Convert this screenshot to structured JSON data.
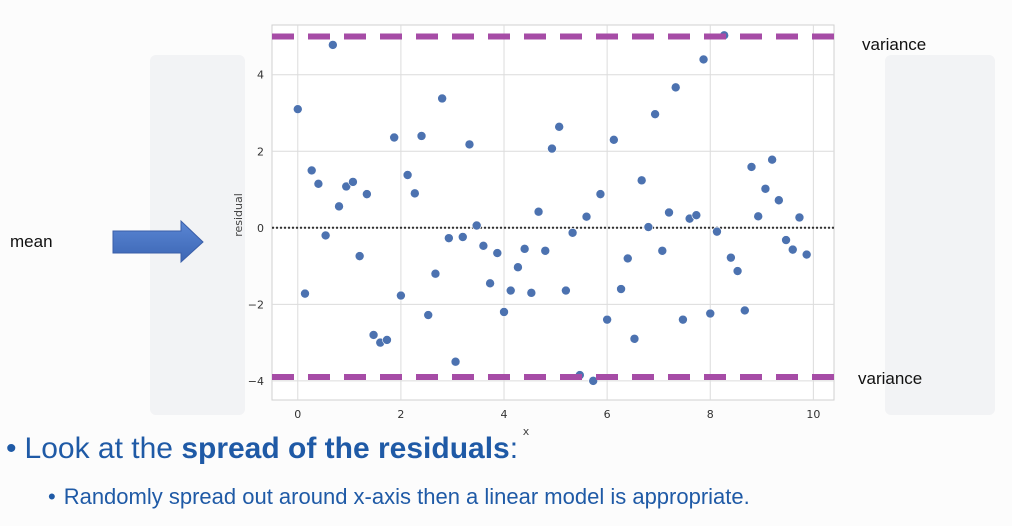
{
  "labels": {
    "mean": "mean",
    "variance_top": "variance",
    "variance_bottom": "variance"
  },
  "bullets": {
    "b1_pre": "Look at the ",
    "b1_bold": "spread of the residuals",
    "b1_post": ":",
    "b2": "Randomly spread out around x-axis then a linear model is appropriate."
  },
  "colors": {
    "points": "#4c72b0",
    "variance_line": "#a64ca6",
    "arrow": "#4472c4",
    "bullet_text": "#1f5aa6"
  },
  "chart_data": {
    "type": "scatter",
    "title": "",
    "xlabel": "x",
    "ylabel": "residual",
    "xlim": [
      -0.5,
      10.4
    ],
    "ylim": [
      -4.5,
      5.3
    ],
    "xticks": [
      0,
      2,
      4,
      6,
      8,
      10
    ],
    "yticks": [
      -4,
      -2,
      0,
      2,
      4
    ],
    "grid": true,
    "mean_line_y": 0,
    "variance_lines_y": [
      5.0,
      -3.9
    ],
    "points": [
      {
        "x": 0.0,
        "y": 3.1
      },
      {
        "x": 0.14,
        "y": -1.72
      },
      {
        "x": 0.27,
        "y": 1.5
      },
      {
        "x": 0.4,
        "y": 1.15
      },
      {
        "x": 0.54,
        "y": -0.2
      },
      {
        "x": 0.68,
        "y": 4.78
      },
      {
        "x": 0.8,
        "y": 0.56
      },
      {
        "x": 0.94,
        "y": 1.08
      },
      {
        "x": 1.07,
        "y": 1.2
      },
      {
        "x": 1.2,
        "y": -0.74
      },
      {
        "x": 1.34,
        "y": 0.88
      },
      {
        "x": 1.47,
        "y": -2.8
      },
      {
        "x": 1.6,
        "y": -3.0
      },
      {
        "x": 1.73,
        "y": -2.93
      },
      {
        "x": 1.87,
        "y": 2.36
      },
      {
        "x": 2.0,
        "y": -1.77
      },
      {
        "x": 2.13,
        "y": 1.38
      },
      {
        "x": 2.27,
        "y": 0.9
      },
      {
        "x": 2.4,
        "y": 2.4
      },
      {
        "x": 2.53,
        "y": -2.28
      },
      {
        "x": 2.67,
        "y": -1.2
      },
      {
        "x": 2.8,
        "y": 3.38
      },
      {
        "x": 2.93,
        "y": -0.27
      },
      {
        "x": 3.06,
        "y": -3.5
      },
      {
        "x": 3.2,
        "y": -0.24
      },
      {
        "x": 3.33,
        "y": 2.18
      },
      {
        "x": 3.47,
        "y": 0.06
      },
      {
        "x": 3.6,
        "y": -0.47
      },
      {
        "x": 3.73,
        "y": -1.45
      },
      {
        "x": 3.87,
        "y": -0.66
      },
      {
        "x": 4.0,
        "y": -2.2
      },
      {
        "x": 4.13,
        "y": -1.64
      },
      {
        "x": 4.27,
        "y": -1.03
      },
      {
        "x": 4.4,
        "y": -0.55
      },
      {
        "x": 4.53,
        "y": -1.7
      },
      {
        "x": 4.67,
        "y": 0.42
      },
      {
        "x": 4.8,
        "y": -0.6
      },
      {
        "x": 4.93,
        "y": 2.07
      },
      {
        "x": 5.07,
        "y": 2.64
      },
      {
        "x": 5.2,
        "y": -1.64
      },
      {
        "x": 5.33,
        "y": -0.13
      },
      {
        "x": 5.47,
        "y": -3.85
      },
      {
        "x": 5.6,
        "y": 0.29
      },
      {
        "x": 5.73,
        "y": -4.0
      },
      {
        "x": 5.87,
        "y": 0.88
      },
      {
        "x": 6.0,
        "y": -2.4
      },
      {
        "x": 6.13,
        "y": 2.3
      },
      {
        "x": 6.27,
        "y": -1.6
      },
      {
        "x": 6.4,
        "y": -0.8
      },
      {
        "x": 6.53,
        "y": -2.9
      },
      {
        "x": 6.67,
        "y": 1.24
      },
      {
        "x": 6.8,
        "y": 0.02
      },
      {
        "x": 6.93,
        "y": 2.97
      },
      {
        "x": 7.07,
        "y": -0.6
      },
      {
        "x": 7.2,
        "y": 0.4
      },
      {
        "x": 7.33,
        "y": 3.67
      },
      {
        "x": 7.47,
        "y": -2.4
      },
      {
        "x": 7.6,
        "y": 0.24
      },
      {
        "x": 7.73,
        "y": 0.33
      },
      {
        "x": 7.87,
        "y": 4.4
      },
      {
        "x": 8.0,
        "y": -2.24
      },
      {
        "x": 8.13,
        "y": -0.1
      },
      {
        "x": 8.27,
        "y": 5.03
      },
      {
        "x": 8.4,
        "y": -0.78
      },
      {
        "x": 8.53,
        "y": -1.13
      },
      {
        "x": 8.67,
        "y": -2.16
      },
      {
        "x": 8.8,
        "y": 1.59
      },
      {
        "x": 8.93,
        "y": 0.3
      },
      {
        "x": 9.07,
        "y": 1.02
      },
      {
        "x": 9.2,
        "y": 1.78
      },
      {
        "x": 9.33,
        "y": 0.72
      },
      {
        "x": 9.47,
        "y": -0.32
      },
      {
        "x": 9.6,
        "y": -0.57
      },
      {
        "x": 9.73,
        "y": 0.27
      },
      {
        "x": 9.87,
        "y": -0.7
      }
    ]
  }
}
